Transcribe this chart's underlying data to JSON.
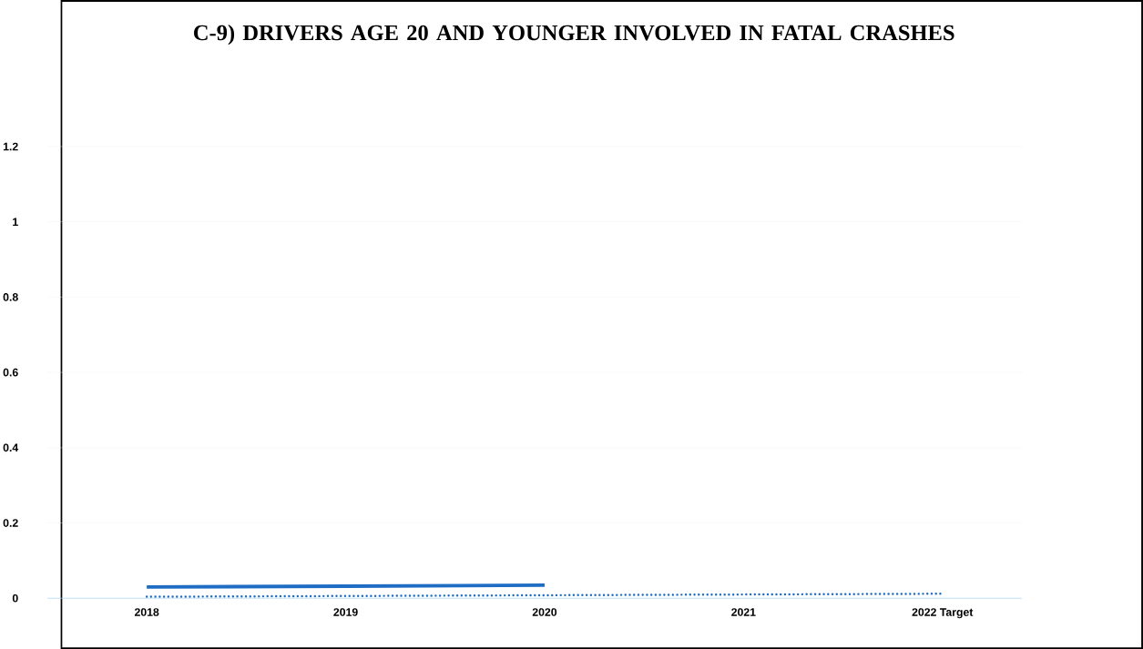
{
  "chart_data": {
    "type": "line",
    "title": "C-9) DRIVERS AGE 20 AND YOUNGER INVOLVED IN FATAL CRASHES",
    "categories": [
      "2018",
      "2019",
      "2020",
      "2021",
      "2022 Target"
    ],
    "series": [
      {
        "color": "#1f6cc4",
        "line_style": "solid",
        "values": [
          0.03,
          0.032,
          0.035,
          null,
          null
        ]
      },
      {
        "color": "#1f6cc4",
        "line_style": "dotted",
        "values": [
          0.004,
          0.006,
          0.008,
          0.01,
          0.012
        ]
      }
    ],
    "ylim": [
      0,
      1.2
    ],
    "yticks": [
      0,
      0.2,
      0.4,
      0.6,
      0.8,
      1,
      1.2
    ],
    "grid": "y"
  }
}
